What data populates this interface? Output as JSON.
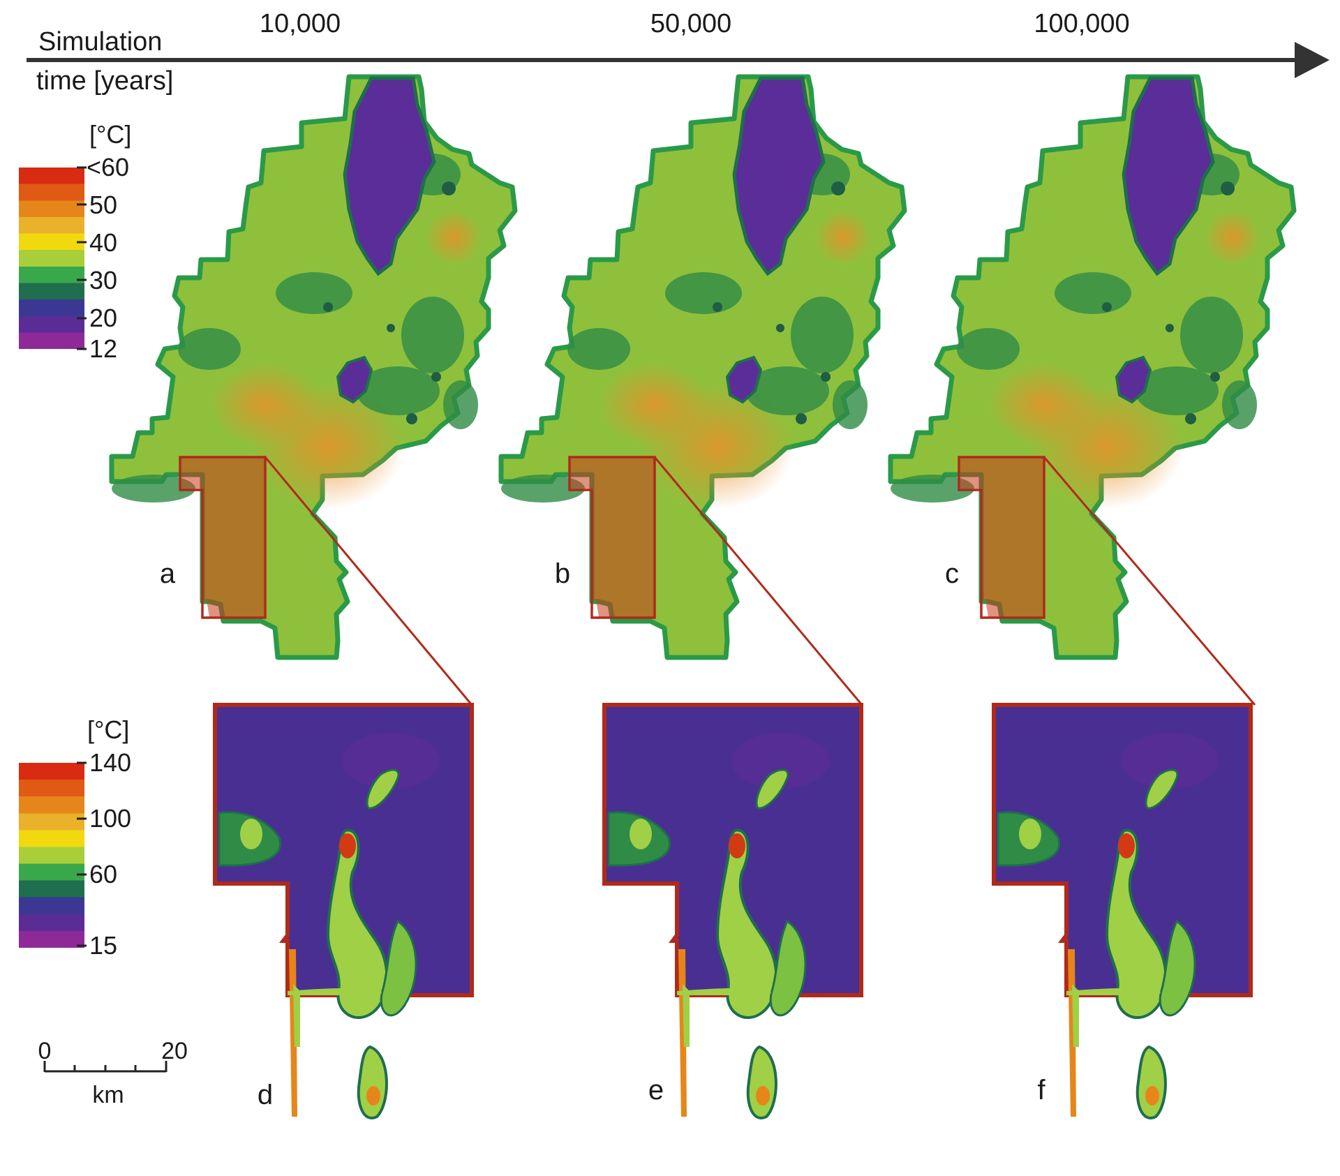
{
  "time_axis": {
    "label_line1": "Simulation",
    "label_line2": "time [years]",
    "ticks": [
      "10,000",
      "50,000",
      "100,000"
    ]
  },
  "scale_top": {
    "unit": "[°C]",
    "tick_labels": [
      "<60",
      "50",
      "40",
      "30",
      "20",
      "12"
    ],
    "colors": [
      "#d92a12",
      "#e05a14",
      "#e6861a",
      "#eab12a",
      "#f2d90f",
      "#a8cf3a",
      "#39a84a",
      "#1f6e4e",
      "#3b3894",
      "#5a2c95",
      "#8e2a98"
    ]
  },
  "scale_bottom": {
    "unit": "[°C]",
    "tick_labels": [
      "140",
      "100",
      "60",
      "15"
    ],
    "colors": [
      "#d92a12",
      "#e05a14",
      "#e6861a",
      "#eab12a",
      "#f2d90f",
      "#a8cf3a",
      "#39a84a",
      "#1f6e4e",
      "#3b3894",
      "#5a2c95",
      "#8e2a98"
    ]
  },
  "scalebar": {
    "start": "0",
    "end": "20",
    "unit": "km"
  },
  "panel_letters": [
    "a",
    "b",
    "c",
    "d",
    "e",
    "f"
  ],
  "palette": {
    "region_fill": "#8fc03c",
    "region_border": "#2a9a48",
    "cold_zone": "#5b2d98",
    "zoom_outline": "#b02a1a",
    "inset_fill": "#4a2f92",
    "anomaly": "#9fd046",
    "anomaly_edge": "#1f6e4e",
    "hot": "#d23a14"
  }
}
